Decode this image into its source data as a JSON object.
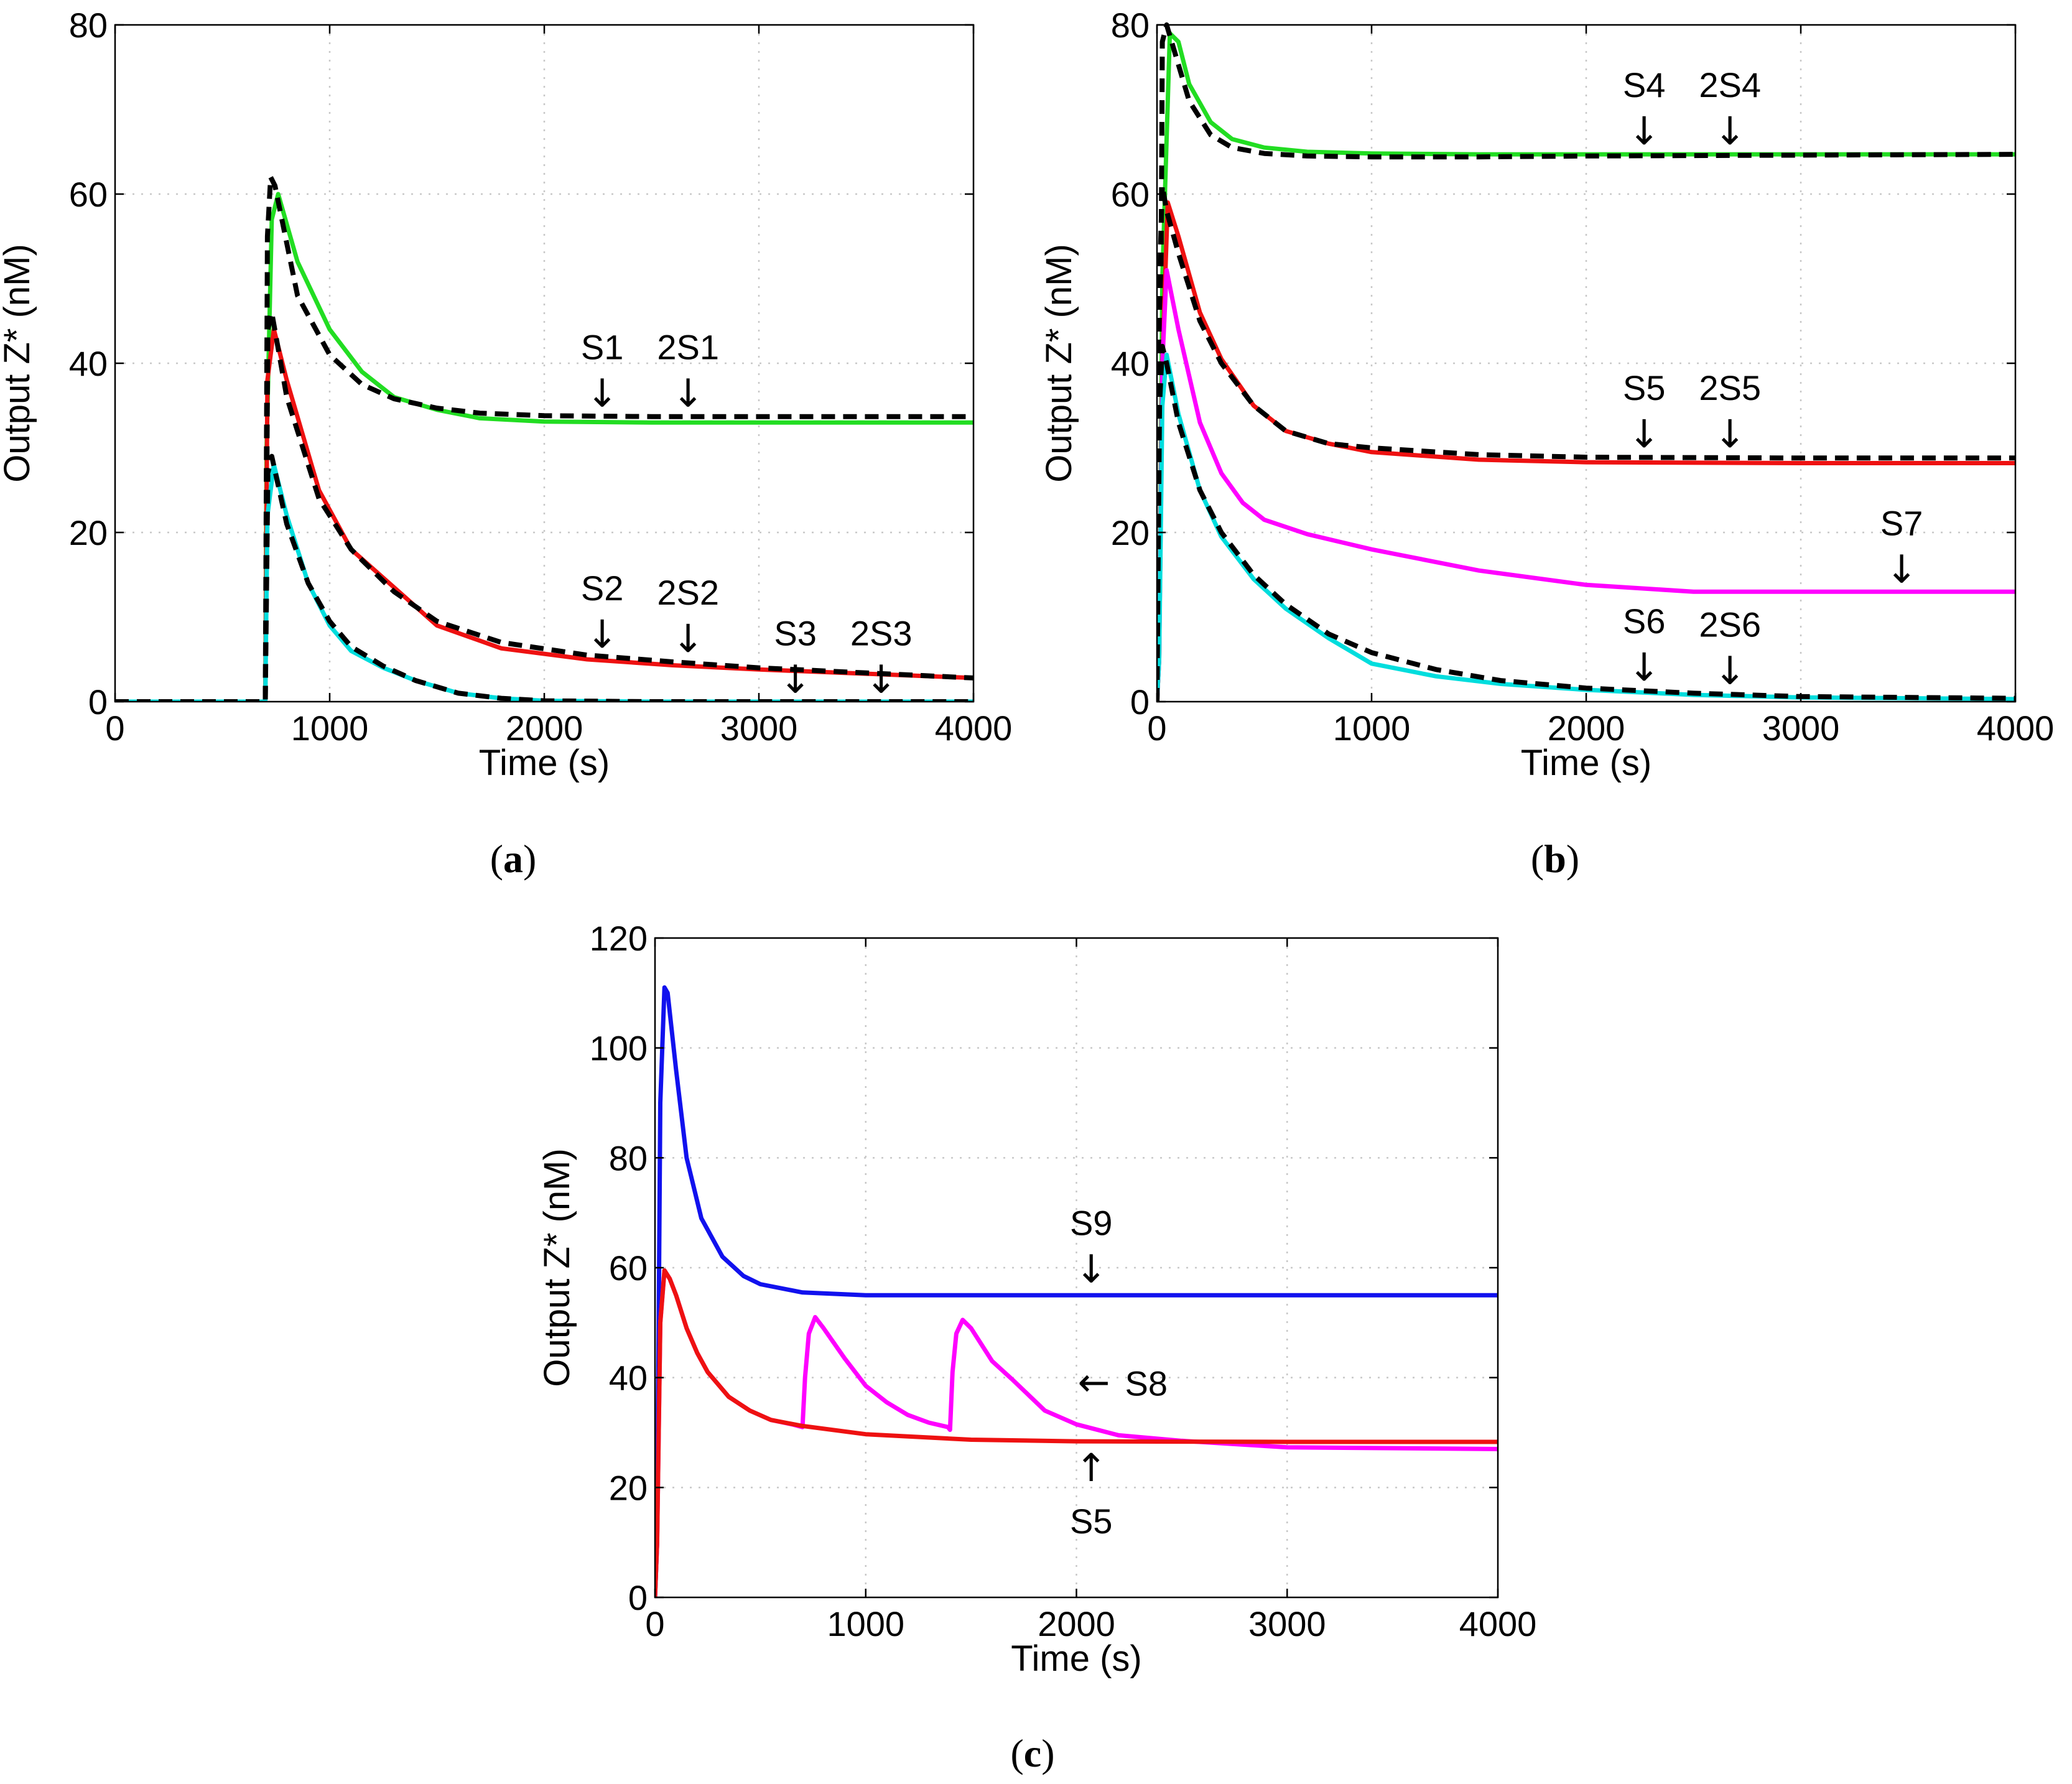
{
  "chart_data": [
    {
      "panel": "a",
      "caption": {
        "open": "(",
        "letter": "a",
        "close": ")"
      },
      "type": "line",
      "xlabel": "Time (s)",
      "ylabel": "Output Z* (nM)",
      "xlim": [
        0,
        4000
      ],
      "ylim": [
        0,
        80
      ],
      "xticks": [
        0,
        1000,
        2000,
        3000,
        4000
      ],
      "yticks": [
        0,
        20,
        40,
        60,
        80
      ],
      "grid": true,
      "series": [
        {
          "name": "S1",
          "color": "#22dd22",
          "style": "solid",
          "x": [
            0,
            700,
            706,
            730,
            760,
            850,
            1000,
            1150,
            1300,
            1500,
            1700,
            2000,
            2500,
            3000,
            4000
          ],
          "y": [
            0,
            0,
            30,
            57,
            60,
            52,
            44,
            39,
            36,
            34.5,
            33.5,
            33.1,
            33,
            33,
            33
          ]
        },
        {
          "name": "S1 (dashed)",
          "color": "#000000",
          "style": "dashed",
          "x": [
            0,
            700,
            710,
            725,
            745,
            850,
            1000,
            1150,
            1300,
            1500,
            1700,
            2000,
            2500,
            3000,
            4000
          ],
          "y": [
            0,
            0,
            55,
            62,
            61,
            48,
            41,
            37.5,
            35.8,
            34.7,
            34.1,
            33.8,
            33.7,
            33.7,
            33.7
          ]
        },
        {
          "name": "S2",
          "color": "#ee1111",
          "style": "solid",
          "x": [
            0,
            700,
            710,
            740,
            800,
            950,
            1100,
            1300,
            1500,
            1800,
            2200,
            2600,
            3000,
            3500,
            4000
          ],
          "y": [
            0,
            0,
            38,
            44,
            38,
            25,
            18,
            13.5,
            9,
            6.3,
            5,
            4.3,
            3.8,
            3.3,
            2.8
          ]
        },
        {
          "name": "S2 (dashed)",
          "color": "#000000",
          "style": "dashed",
          "x": [
            0,
            700,
            712,
            730,
            800,
            950,
            1100,
            1300,
            1500,
            1800,
            2200,
            2600,
            3000,
            3500,
            4000
          ],
          "y": [
            0,
            0,
            44,
            46,
            36,
            24,
            18,
            13,
            9.5,
            7,
            5.5,
            4.7,
            4,
            3.4,
            2.8
          ]
        },
        {
          "name": "S3",
          "color": "#00dddd",
          "style": "solid",
          "x": [
            0,
            700,
            710,
            740,
            800,
            900,
            1000,
            1100,
            1250,
            1400,
            1600,
            1800,
            2000,
            2500,
            4000
          ],
          "y": [
            0,
            0,
            22,
            28,
            22,
            14,
            9,
            6,
            4,
            2.5,
            1,
            0.4,
            0.1,
            0,
            0
          ]
        },
        {
          "name": "S3 (dashed)",
          "color": "#000000",
          "style": "dashed",
          "x": [
            0,
            700,
            712,
            730,
            800,
            900,
            1000,
            1100,
            1250,
            1400,
            1600,
            1800,
            2000,
            2500,
            4000
          ],
          "y": [
            0,
            0,
            27,
            29,
            21,
            14,
            9.5,
            6.5,
            4.2,
            2.5,
            1,
            0.4,
            0.1,
            0,
            0
          ]
        }
      ],
      "annotations": [
        {
          "text": "S1",
          "arrow": "↓",
          "direction": "down",
          "x": 2270,
          "y": 34
        },
        {
          "text": "2S1",
          "arrow": "↓",
          "direction": "down",
          "x": 2670,
          "y": 34
        },
        {
          "text": "S2",
          "arrow": "↓",
          "direction": "down",
          "x": 2270,
          "y": 5.5
        },
        {
          "text": "2S2",
          "arrow": "↓",
          "direction": "down",
          "x": 2670,
          "y": 5
        },
        {
          "text": "S3",
          "arrow": "↓",
          "direction": "down",
          "x": 3170,
          "y": 0.2
        },
        {
          "text": "2S3",
          "arrow": "↓",
          "direction": "down",
          "x": 3570,
          "y": 0.2
        }
      ]
    },
    {
      "panel": "b",
      "caption": {
        "open": "(",
        "letter": "b",
        "close": ")"
      },
      "type": "line",
      "xlabel": "Time (s)",
      "ylabel": "Output Z* (nM)",
      "xlim": [
        0,
        4000
      ],
      "ylim": [
        0,
        80
      ],
      "xticks": [
        0,
        1000,
        2000,
        3000,
        4000
      ],
      "yticks": [
        0,
        20,
        40,
        60,
        80
      ],
      "grid": true,
      "series": [
        {
          "name": "S4",
          "color": "#22dd22",
          "style": "solid",
          "x": [
            0,
            10,
            25,
            60,
            100,
            150,
            250,
            350,
            500,
            700,
            1000,
            1500,
            2000,
            3000,
            4000
          ],
          "y": [
            0,
            5,
            50,
            79,
            78,
            73,
            68.5,
            66.5,
            65.5,
            65,
            64.8,
            64.7,
            64.7,
            64.7,
            64.7
          ]
        },
        {
          "name": "S4 (dashed)",
          "color": "#000000",
          "style": "dashed",
          "x": [
            0,
            10,
            25,
            45,
            80,
            150,
            250,
            350,
            500,
            700,
            1000,
            1500,
            2000,
            3000,
            4000
          ],
          "y": [
            0,
            10,
            78,
            80,
            77,
            71,
            67,
            65.5,
            64.8,
            64.5,
            64.4,
            64.4,
            64.5,
            64.6,
            64.7
          ]
        },
        {
          "name": "S5",
          "color": "#ee1111",
          "style": "solid",
          "x": [
            0,
            10,
            25,
            50,
            100,
            200,
            300,
            450,
            600,
            800,
            1000,
            1500,
            2000,
            3000,
            4000
          ],
          "y": [
            0,
            5,
            40,
            59,
            55,
            46,
            40.5,
            35,
            32,
            30.5,
            29.5,
            28.6,
            28.3,
            28.2,
            28.2
          ]
        },
        {
          "name": "S5 (dashed)",
          "color": "#000000",
          "style": "dashed",
          "x": [
            0,
            12,
            25,
            45,
            100,
            200,
            300,
            450,
            600,
            800,
            1000,
            1500,
            2000,
            3000,
            4000
          ],
          "y": [
            0,
            50,
            61,
            58,
            53,
            45,
            40,
            35,
            32,
            30.5,
            30,
            29.2,
            28.9,
            28.8,
            28.8
          ]
        },
        {
          "name": "S7",
          "color": "#ff00ff",
          "style": "solid",
          "x": [
            0,
            10,
            25,
            45,
            100,
            200,
            300,
            400,
            500,
            700,
            1000,
            1500,
            2000,
            2500,
            3000,
            4000
          ],
          "y": [
            0,
            5,
            40,
            51,
            44,
            33,
            27,
            23.5,
            21.5,
            19.8,
            18,
            15.5,
            13.8,
            13,
            13,
            13
          ]
        },
        {
          "name": "S6",
          "color": "#00dddd",
          "style": "solid",
          "x": [
            0,
            10,
            25,
            45,
            100,
            200,
            300,
            450,
            600,
            800,
            1000,
            1300,
            1600,
            2000,
            2500,
            3000,
            4000
          ],
          "y": [
            0,
            5,
            35,
            41,
            34,
            25,
            19.5,
            14.5,
            11,
            7.5,
            4.5,
            3,
            2.1,
            1.4,
            0.8,
            0.5,
            0.3
          ]
        },
        {
          "name": "S6 (dashed)",
          "color": "#000000",
          "style": "dashed",
          "x": [
            0,
            12,
            25,
            45,
            100,
            200,
            300,
            450,
            600,
            800,
            1000,
            1300,
            1600,
            2000,
            2500,
            3000,
            4000
          ],
          "y": [
            0,
            35,
            42,
            40,
            33,
            25,
            20,
            15,
            11.5,
            8,
            5.8,
            3.8,
            2.5,
            1.6,
            1,
            0.6,
            0.4
          ]
        }
      ],
      "annotations": [
        {
          "text": "S4",
          "arrow": "↓",
          "direction": "down",
          "x": 2270,
          "y": 65
        },
        {
          "text": "2S4",
          "arrow": "↓",
          "direction": "down",
          "x": 2670,
          "y": 65
        },
        {
          "text": "S5",
          "arrow": "↓",
          "direction": "down",
          "x": 2270,
          "y": 29.2
        },
        {
          "text": "2S5",
          "arrow": "↓",
          "direction": "down",
          "x": 2670,
          "y": 29.2
        },
        {
          "text": "S7",
          "arrow": "↓",
          "direction": "down",
          "x": 3470,
          "y": 13.2
        },
        {
          "text": "S6",
          "arrow": "↓",
          "direction": "down",
          "x": 2270,
          "y": 1.6
        },
        {
          "text": "2S6",
          "arrow": "↓",
          "direction": "down",
          "x": 2670,
          "y": 1.2
        }
      ]
    },
    {
      "panel": "c",
      "caption": {
        "open": "(",
        "letter": "c",
        "close": ")"
      },
      "type": "line",
      "xlabel": "Time (s)",
      "ylabel": "Output Z* (nM)",
      "xlim": [
        0,
        4000
      ],
      "ylim": [
        0,
        120
      ],
      "xticks": [
        0,
        1000,
        2000,
        3000,
        4000
      ],
      "yticks": [
        0,
        20,
        40,
        60,
        80,
        100,
        120
      ],
      "grid": true,
      "series": [
        {
          "name": "S9",
          "color": "#1111ee",
          "style": "solid",
          "x": [
            0,
            10,
            25,
            45,
            60,
            100,
            150,
            220,
            320,
            420,
            500,
            700,
            1000,
            1500,
            2000,
            3000,
            4000
          ],
          "y": [
            0,
            10,
            90,
            111,
            110,
            96,
            80,
            69,
            62,
            58.5,
            57,
            55.5,
            55,
            55,
            55,
            55,
            55
          ]
        },
        {
          "name": "S8",
          "color": "#ff00ff",
          "style": "solid",
          "x": [
            0,
            10,
            25,
            45,
            70,
            100,
            150,
            200,
            250,
            350,
            450,
            550,
            650,
            700,
            712,
            730,
            760,
            800,
            900,
            1000,
            1100,
            1200,
            1300,
            1390,
            1400,
            1412,
            1430,
            1460,
            1500,
            1600,
            1700,
            1850,
            2000,
            2200,
            2500,
            3000,
            4000
          ],
          "y": [
            0,
            10,
            50,
            59.5,
            58,
            55,
            49,
            44.5,
            41,
            36.5,
            34,
            32.3,
            31.5,
            31,
            40,
            48,
            51,
            49,
            43.5,
            38.5,
            35.5,
            33.2,
            31.8,
            31,
            30.5,
            41,
            48,
            50.5,
            49,
            43,
            39.5,
            34,
            31.5,
            29.5,
            28.5,
            27.3,
            27
          ]
        },
        {
          "name": "S5",
          "color": "#ee1111",
          "style": "solid",
          "x": [
            0,
            10,
            25,
            45,
            70,
            100,
            150,
            200,
            250,
            350,
            450,
            550,
            700,
            1000,
            1500,
            2000,
            3000,
            4000
          ],
          "y": [
            0,
            10,
            50,
            59.5,
            58,
            55,
            49,
            44.5,
            41,
            36.5,
            34,
            32.3,
            31.2,
            29.7,
            28.7,
            28.4,
            28.3,
            28.3
          ]
        }
      ],
      "annotations": [
        {
          "text": "S9",
          "arrow": "↓",
          "direction": "down",
          "x": 2070,
          "y": 56
        },
        {
          "text": "S8",
          "arrow": "←",
          "direction": "left",
          "x": 2000,
          "y": 39
        },
        {
          "text": "S5",
          "arrow": "↑",
          "direction": "up",
          "x": 2070,
          "y": 27.5
        }
      ]
    }
  ]
}
